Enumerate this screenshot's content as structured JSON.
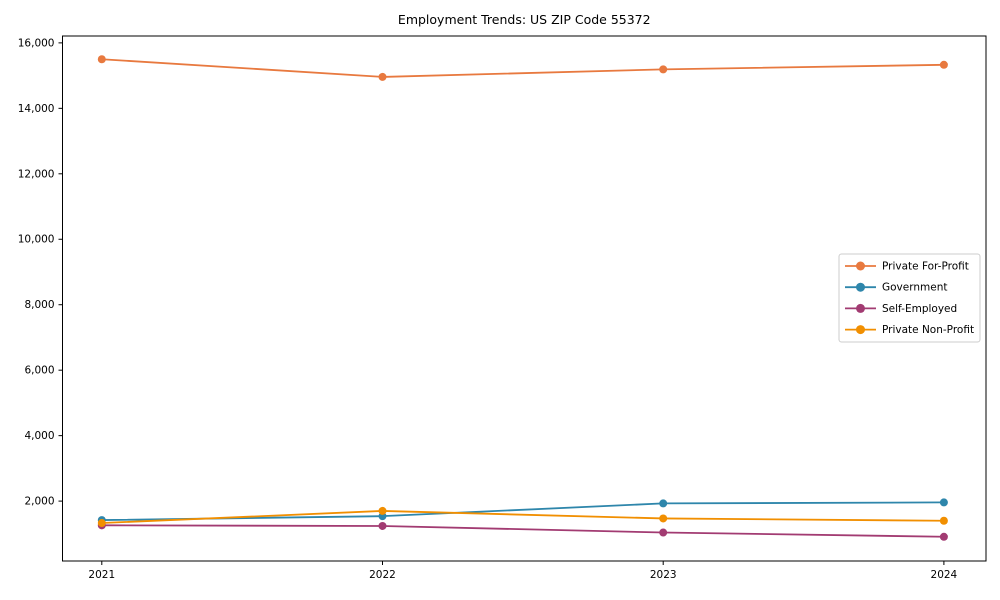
{
  "figure": {
    "background_color": "#ffffff",
    "axes_color": "#000000",
    "text_color": "#000000",
    "legend_border_color": "#cccccc",
    "legend_background_color": "#ffffff"
  },
  "chart_data": {
    "type": "line",
    "title": "Employment Trends: US ZIP Code 55372",
    "xlabel": "",
    "ylabel": "",
    "x": [
      2021,
      2022,
      2023,
      2024
    ],
    "x_tick_labels": [
      "2021",
      "2022",
      "2023",
      "2024"
    ],
    "series": [
      {
        "name": "Private For-Profit",
        "color": "#E8793F",
        "marker": "o",
        "values": [
          15500,
          14960,
          15190,
          15330
        ]
      },
      {
        "name": "Government",
        "color": "#2E86AB",
        "marker": "o",
        "values": [
          1420,
          1540,
          1930,
          1960
        ]
      },
      {
        "name": "Self-Employed",
        "color": "#A23B72",
        "marker": "o",
        "values": [
          1260,
          1240,
          1040,
          910
        ]
      },
      {
        "name": "Private Non-Profit",
        "color": "#F18F01",
        "marker": "o",
        "values": [
          1330,
          1700,
          1470,
          1400
        ]
      }
    ],
    "xlim": [
      2020.86,
      2024.15
    ],
    "ylim": [
      170,
      16210
    ],
    "yticks": [
      2000,
      4000,
      6000,
      8000,
      10000,
      12000,
      14000,
      16000
    ],
    "ytick_labels": [
      "2,000",
      "4,000",
      "6,000",
      "8,000",
      "10,000",
      "12,000",
      "14,000",
      "16,000"
    ],
    "grid": false,
    "legend": {
      "position": "center-right",
      "entries": [
        "Private For-Profit",
        "Government",
        "Self-Employed",
        "Private Non-Profit"
      ]
    }
  }
}
